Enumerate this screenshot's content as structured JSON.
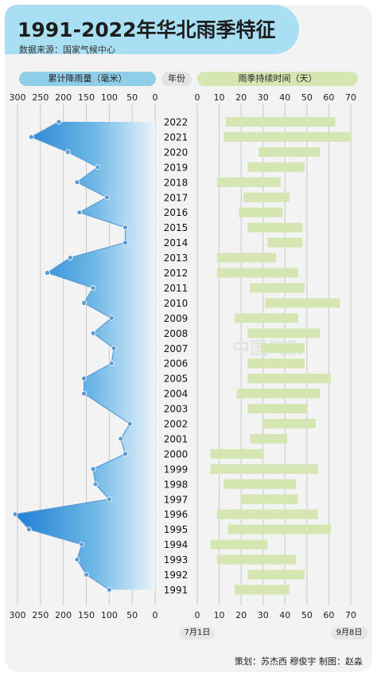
{
  "header": {
    "title": "1991-2022年华北雨季特征",
    "source": "数据来源：国家气候中心"
  },
  "labels": {
    "rain": "累计降雨量（毫米）",
    "year": "年份",
    "days": "雨季持续时间（天）",
    "date_start": "7月1日",
    "date_end": "9月8日",
    "watermark": "中国气象"
  },
  "footer": "策划：苏杰西  穆俊宇    制图：赵淼",
  "colors": {
    "rain_fill_dark": "#1f7ed3",
    "rain_fill_light": "#eaf5fb",
    "rain_line": "#5b9bd5",
    "bar": "#d5e6b2"
  },
  "chart_data": [
    {
      "type": "area",
      "title": "累计降雨量（毫米）",
      "xlim": [
        300,
        0
      ],
      "ticks": [
        300,
        250,
        200,
        150,
        100,
        50,
        0
      ],
      "years": [
        2022,
        2021,
        2020,
        2019,
        2018,
        2017,
        2016,
        2015,
        2014,
        2013,
        2012,
        2011,
        2010,
        2009,
        2008,
        2007,
        2006,
        2005,
        2004,
        2003,
        2002,
        2001,
        2000,
        1999,
        1998,
        1997,
        1996,
        1995,
        1994,
        1993,
        1992,
        1991
      ],
      "values": [
        210,
        270,
        190,
        125,
        170,
        105,
        165,
        65,
        65,
        185,
        235,
        135,
        155,
        95,
        135,
        90,
        95,
        155,
        155,
        null,
        55,
        75,
        65,
        135,
        130,
        100,
        305,
        275,
        160,
        170,
        150,
        100
      ]
    },
    {
      "type": "bar",
      "title": "雨季持续时间（天）",
      "xlim": [
        0,
        70
      ],
      "ticks": [
        0,
        10,
        20,
        30,
        40,
        50,
        60,
        70
      ],
      "years": [
        2022,
        2021,
        2020,
        2019,
        2018,
        2017,
        2016,
        2015,
        2014,
        2013,
        2012,
        2011,
        2010,
        2009,
        2008,
        2007,
        2006,
        2005,
        2004,
        2003,
        2002,
        2001,
        2000,
        1999,
        1998,
        1997,
        1996,
        1995,
        1994,
        1993,
        1992,
        1991
      ],
      "ranges": [
        [
          13,
          63
        ],
        [
          12,
          70
        ],
        [
          28,
          56
        ],
        [
          23,
          49
        ],
        [
          9,
          38
        ],
        [
          21,
          42
        ],
        [
          19,
          39
        ],
        [
          23,
          48
        ],
        [
          32,
          48
        ],
        [
          9,
          36
        ],
        [
          9,
          46
        ],
        [
          24,
          49
        ],
        [
          31,
          65
        ],
        [
          17,
          46
        ],
        [
          23,
          56
        ],
        [
          29,
          49
        ],
        [
          23,
          49
        ],
        [
          23,
          61
        ],
        [
          18,
          56
        ],
        [
          23,
          50
        ],
        [
          30,
          54
        ],
        [
          24,
          41
        ],
        [
          6,
          30
        ],
        [
          6,
          55
        ],
        [
          12,
          45
        ],
        [
          20,
          46
        ],
        [
          9,
          55
        ],
        [
          14,
          61
        ],
        [
          6,
          32
        ],
        [
          9,
          45
        ],
        [
          23,
          49
        ],
        [
          17,
          42
        ]
      ]
    }
  ]
}
